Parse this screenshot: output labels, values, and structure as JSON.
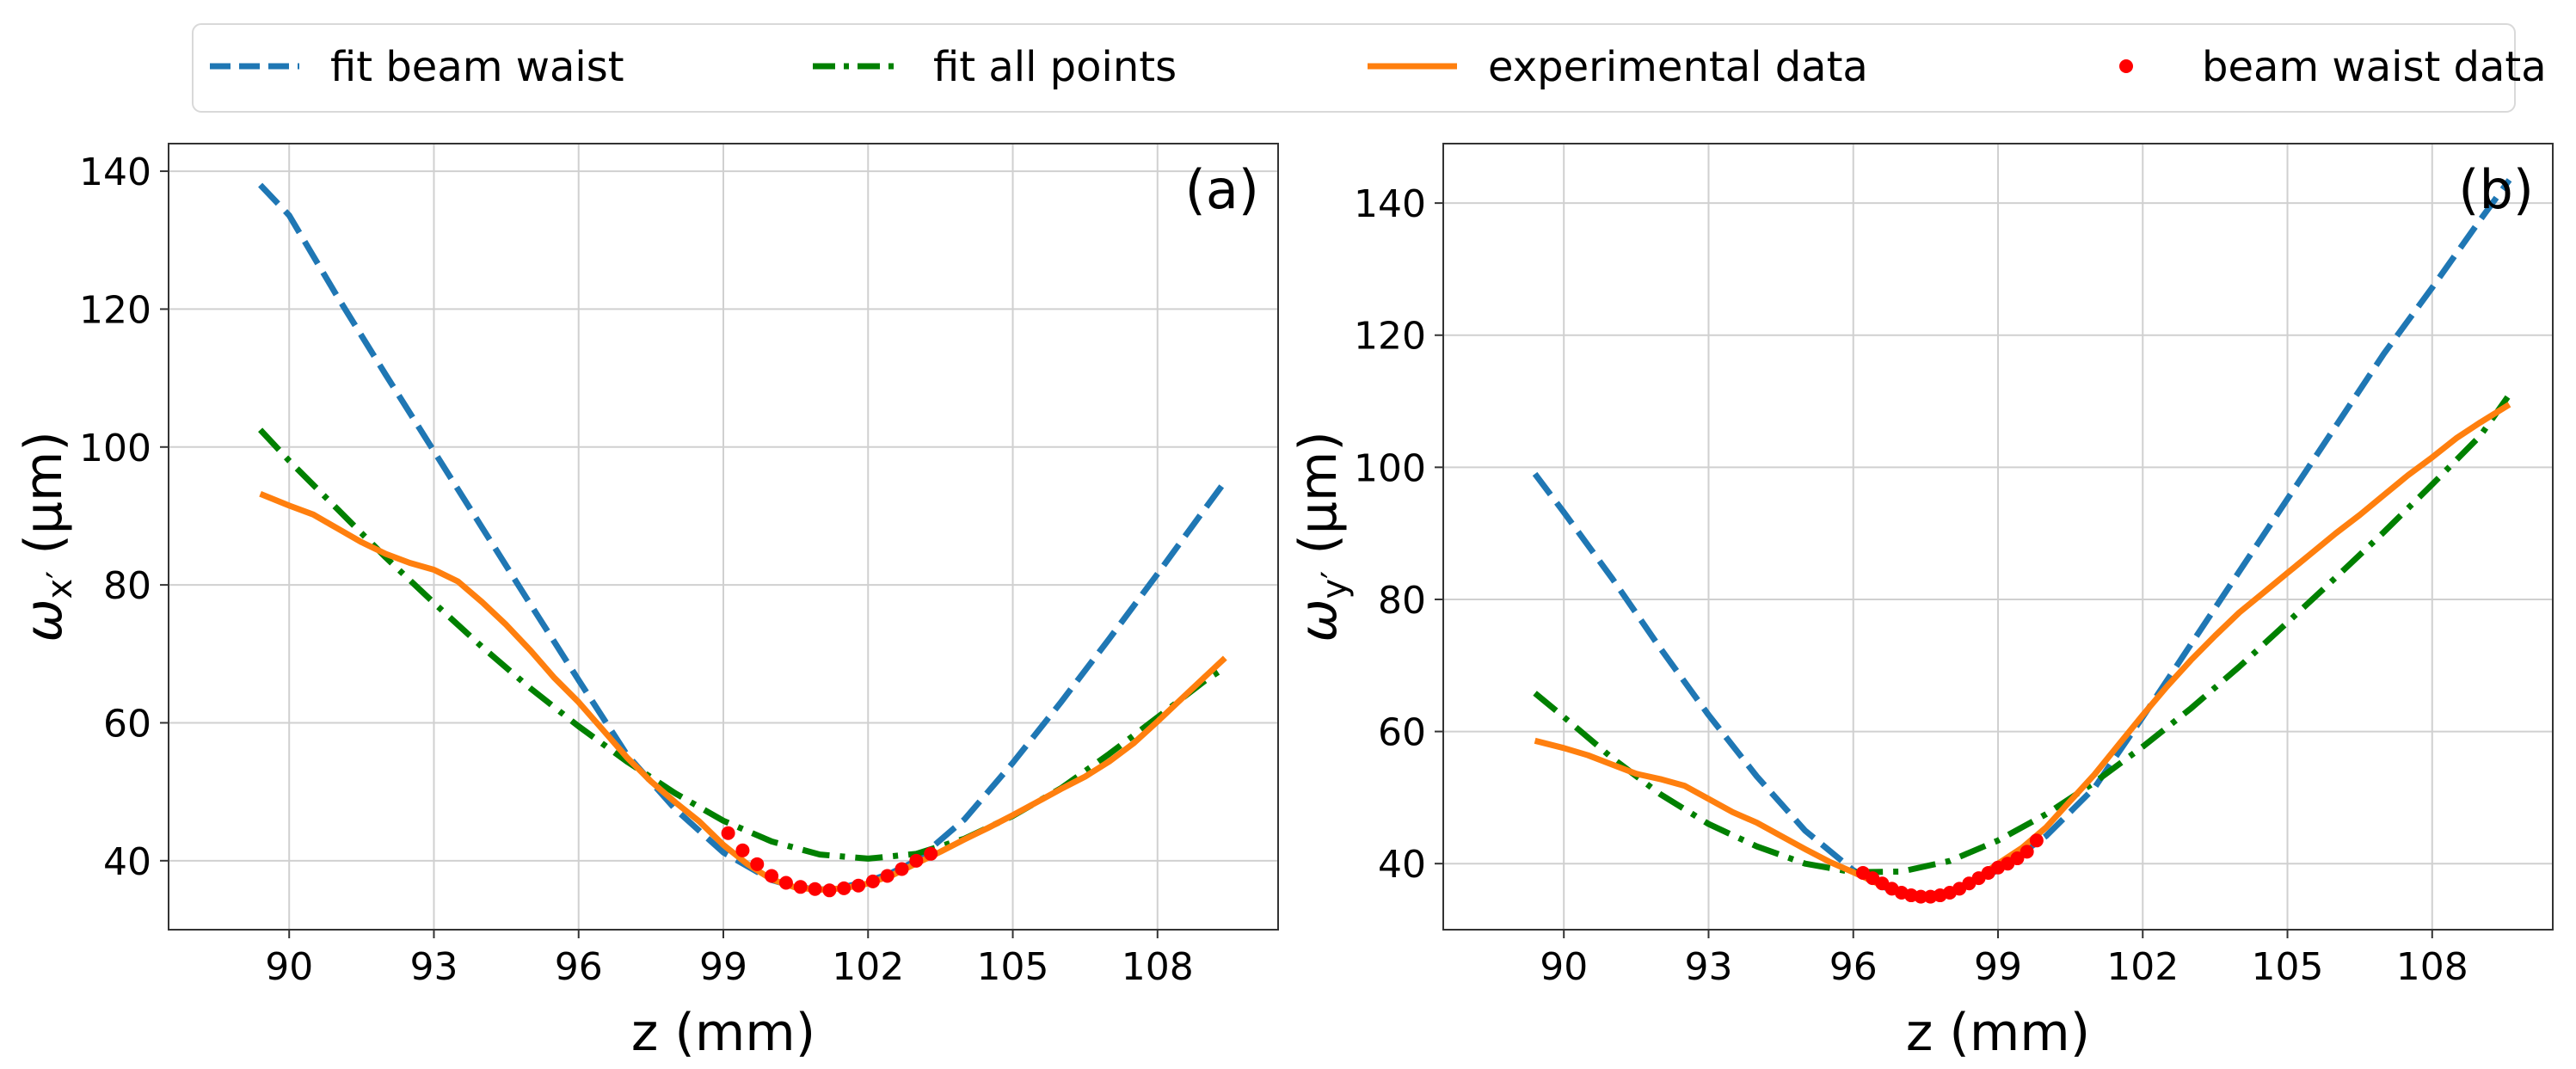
{
  "legend": {
    "placement": "top",
    "entries": [
      {
        "label": "fit beam waist",
        "color": "#1f77b4",
        "style": "dashed"
      },
      {
        "label": "fit all points",
        "color": "#008000",
        "style": "dashdot"
      },
      {
        "label": "experimental data",
        "color": "#ff7f0e",
        "style": "solid"
      },
      {
        "label": "beam waist data",
        "color": "#ff0000",
        "style": "dots"
      }
    ]
  },
  "chart_data": [
    {
      "type": "line",
      "panel_label": "(a)",
      "xlabel": "z (mm)",
      "ylabel": "ωx′ (μm)",
      "ylabel_parts": {
        "symbol": "ω",
        "sub": "x′",
        "unit": " (μm)"
      },
      "xlim": [
        87.5,
        110.5
      ],
      "ylim": [
        30,
        144
      ],
      "xticks": [
        90,
        93,
        96,
        99,
        102,
        105,
        108
      ],
      "yticks": [
        40,
        60,
        80,
        100,
        120,
        140
      ],
      "grid": true,
      "series": [
        {
          "name": "fit beam waist",
          "color": "#1f77b4",
          "style": "dashed",
          "x": [
            89.4,
            90,
            91,
            92,
            93,
            94,
            95,
            96,
            97,
            98,
            99,
            100,
            100.5,
            101,
            101.5,
            102,
            102.5,
            103,
            104,
            105,
            106,
            107,
            108,
            109,
            109.4
          ],
          "y": [
            138,
            133.6,
            121.8,
            110.5,
            99.4,
            88.3,
            77.2,
            66.2,
            55.4,
            47.5,
            41.2,
            37.2,
            36.2,
            35.8,
            36.2,
            37,
            38.3,
            40,
            46,
            54.2,
            63,
            72.2,
            81.6,
            91.2,
            95
          ]
        },
        {
          "name": "fit all points",
          "color": "#008000",
          "style": "dashdot",
          "x": [
            89.4,
            90,
            91,
            92,
            93,
            94,
            95,
            96,
            97,
            98,
            99,
            100,
            101,
            102,
            103,
            104,
            105,
            106,
            107,
            108,
            109,
            109.4
          ],
          "y": [
            102.5,
            98,
            91,
            84,
            77.4,
            71,
            65,
            59.5,
            54.4,
            49.8,
            45.8,
            42.8,
            40.9,
            40.3,
            41,
            43.2,
            46.5,
            50.5,
            55.5,
            60.8,
            66.2,
            68
          ]
        },
        {
          "name": "experimental data",
          "color": "#ff7f0e",
          "style": "solid",
          "x": [
            89.4,
            90,
            90.5,
            91,
            91.5,
            92,
            92.5,
            93,
            93.5,
            94,
            94.5,
            95,
            95.5,
            96,
            96.5,
            97,
            97.5,
            98,
            98.5,
            99,
            99.5,
            100,
            100.5,
            101,
            101.5,
            102,
            102.5,
            103,
            103.5,
            104,
            104.5,
            105,
            105.5,
            106,
            106.5,
            107,
            107.5,
            108,
            108.5,
            109,
            109.4
          ],
          "y": [
            93.2,
            91.5,
            90.2,
            88.2,
            86.2,
            84.5,
            83.2,
            82.2,
            80.5,
            77.5,
            74.2,
            70.5,
            66.5,
            63,
            59,
            55,
            51.5,
            48.5,
            45.7,
            42.3,
            39.5,
            37.3,
            36.1,
            35.8,
            36,
            36.7,
            37.9,
            39.6,
            41.3,
            43.1,
            44.8,
            46.6,
            48.5,
            50.4,
            52.2,
            54.4,
            57,
            60.2,
            63.5,
            66.8,
            69.4
          ]
        },
        {
          "name": "beam waist data",
          "color": "#ff0000",
          "style": "dots",
          "x": [
            99.1,
            99.4,
            99.7,
            100.0,
            100.3,
            100.6,
            100.9,
            101.2,
            101.5,
            101.8,
            102.1,
            102.4,
            102.7,
            103.0,
            103.3
          ],
          "y": [
            44,
            41.5,
            39.5,
            37.8,
            36.8,
            36.2,
            35.9,
            35.7,
            36,
            36.4,
            37,
            37.8,
            38.8,
            40,
            41
          ]
        }
      ]
    },
    {
      "type": "line",
      "panel_label": "(b)",
      "xlabel": "z (mm)",
      "ylabel": "ωy′ (μm)",
      "ylabel_parts": {
        "symbol": "ω",
        "sub": "y′",
        "unit": " (μm)"
      },
      "xlim": [
        87.5,
        110.5
      ],
      "ylim": [
        30,
        149
      ],
      "xticks": [
        90,
        93,
        96,
        99,
        102,
        105,
        108
      ],
      "yticks": [
        40,
        60,
        80,
        100,
        120,
        140
      ],
      "grid": true,
      "series": [
        {
          "name": "fit beam waist",
          "color": "#1f77b4",
          "style": "dashed",
          "x": [
            89.4,
            90,
            91,
            92,
            93,
            94,
            95,
            96,
            96.5,
            97,
            97.5,
            98,
            99,
            100,
            101,
            102,
            103,
            104,
            105,
            106,
            107,
            108,
            109,
            109.6
          ],
          "y": [
            99,
            93.2,
            83.2,
            72.6,
            62.5,
            53.2,
            45,
            39,
            36.8,
            35.5,
            35.2,
            35.8,
            39,
            44.2,
            51.5,
            62.2,
            73.2,
            84.2,
            95.2,
            106.2,
            117.2,
            127.2,
            137.5,
            143.5
          ]
        },
        {
          "name": "fit all points",
          "color": "#008000",
          "style": "dashdot",
          "x": [
            89.4,
            90,
            91,
            92,
            93,
            94,
            95,
            96,
            97,
            98,
            99,
            100,
            101,
            102,
            103,
            104,
            105,
            106,
            107,
            108,
            109,
            109.6
          ],
          "y": [
            65.8,
            62.2,
            56,
            50.5,
            46,
            42.6,
            40,
            38.7,
            38.8,
            40.4,
            43.5,
            47.5,
            52.3,
            57.7,
            63.5,
            69.8,
            76.5,
            83.3,
            90.2,
            97.4,
            104.8,
            111
          ]
        },
        {
          "name": "experimental data",
          "color": "#ff7f0e",
          "style": "solid",
          "x": [
            89.4,
            90,
            90.5,
            91,
            91.5,
            92,
            92.5,
            93,
            93.5,
            94,
            94.5,
            95,
            95.5,
            96,
            96.5,
            97,
            97.5,
            98,
            98.5,
            99,
            99.5,
            100,
            100.5,
            101,
            101.5,
            102,
            102.5,
            103,
            103.5,
            104,
            104.5,
            105,
            105.5,
            106,
            106.5,
            107,
            107.5,
            108,
            108.5,
            109,
            109.6
          ],
          "y": [
            58.6,
            57.5,
            56.4,
            55,
            53.6,
            52.8,
            51.8,
            49.8,
            47.8,
            46.2,
            44.2,
            42.2,
            40.3,
            38.7,
            37,
            35.6,
            35,
            35.8,
            37.5,
            40,
            42.4,
            45.5,
            49.5,
            53.5,
            58,
            62.5,
            66.8,
            70.8,
            74.5,
            78,
            81,
            84,
            87,
            90,
            92.8,
            95.8,
            98.8,
            101.5,
            104.4,
            106.8,
            109.5
          ]
        },
        {
          "name": "beam waist data",
          "color": "#ff0000",
          "style": "dots",
          "x": [
            96.2,
            96.4,
            96.6,
            96.8,
            97.0,
            97.2,
            97.4,
            97.6,
            97.8,
            98.0,
            98.2,
            98.4,
            98.6,
            98.8,
            99.0,
            99.2,
            99.4,
            99.6,
            99.8
          ],
          "y": [
            38.6,
            37.8,
            37,
            36.2,
            35.6,
            35.2,
            35,
            35,
            35.2,
            35.6,
            36.2,
            37,
            37.8,
            38.6,
            39.4,
            40,
            40.8,
            41.8,
            43.5
          ]
        }
      ]
    }
  ]
}
